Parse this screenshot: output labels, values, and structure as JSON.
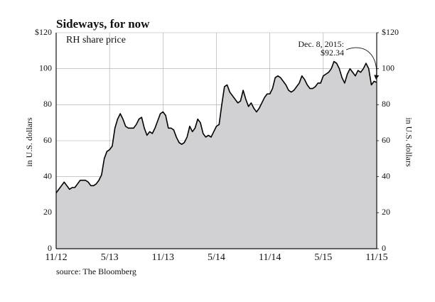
{
  "chart_data": {
    "type": "area",
    "title": "Sideways, for now",
    "subtitle": "RH share price",
    "ylabel": "in U.S. dollars",
    "y2label": "in U.S. dollars",
    "source": "source: The Bloomberg",
    "annotation": {
      "label": "Dec. 8, 2015:",
      "value": 92.34,
      "value_label": "$92.34"
    },
    "color": "#d1d1d3",
    "line_color": "#000000",
    "grid": true,
    "xlim": [
      2012.833,
      2015.833
    ],
    "xticks": [
      {
        "value": 2012.833,
        "label": "11/12"
      },
      {
        "value": 2013.333,
        "label": "5/13"
      },
      {
        "value": 2013.833,
        "label": "11/13"
      },
      {
        "value": 2014.333,
        "label": "5/14"
      },
      {
        "value": 2014.833,
        "label": "11/14"
      },
      {
        "value": 2015.333,
        "label": "5/15"
      },
      {
        "value": 2015.833,
        "label": "11/15"
      }
    ],
    "ylim": [
      0,
      120
    ],
    "yticks": [
      {
        "value": 120,
        "label": "$120"
      },
      100,
      80,
      60,
      40,
      20,
      0
    ],
    "y2lim": [
      0,
      120
    ],
    "y2ticks": [
      {
        "value": 120,
        "label": "$120"
      },
      100,
      80,
      60,
      40,
      20,
      0
    ],
    "x": [
      2012.833,
      2012.858,
      2012.883,
      2012.908,
      2012.933,
      2012.958,
      2012.983,
      2013.008,
      2013.033,
      2013.058,
      2013.083,
      2013.108,
      2013.133,
      2013.158,
      2013.183,
      2013.208,
      2013.233,
      2013.258,
      2013.283,
      2013.308,
      2013.333,
      2013.358,
      2013.383,
      2013.408,
      2013.433,
      2013.458,
      2013.483,
      2013.508,
      2013.533,
      2013.558,
      2013.583,
      2013.608,
      2013.633,
      2013.658,
      2013.683,
      2013.708,
      2013.733,
      2013.758,
      2013.783,
      2013.808,
      2013.833,
      2013.858,
      2013.883,
      2013.908,
      2013.933,
      2013.958,
      2013.983,
      2014.008,
      2014.033,
      2014.058,
      2014.083,
      2014.108,
      2014.133,
      2014.158,
      2014.183,
      2014.208,
      2014.233,
      2014.258,
      2014.283,
      2014.308,
      2014.333,
      2014.358,
      2014.383,
      2014.408,
      2014.433,
      2014.458,
      2014.483,
      2014.508,
      2014.533,
      2014.558,
      2014.583,
      2014.608,
      2014.633,
      2014.658,
      2014.683,
      2014.708,
      2014.733,
      2014.758,
      2014.783,
      2014.808,
      2014.833,
      2014.858,
      2014.883,
      2014.908,
      2014.933,
      2014.958,
      2014.983,
      2015.008,
      2015.033,
      2015.058,
      2015.083,
      2015.108,
      2015.133,
      2015.158,
      2015.183,
      2015.208,
      2015.233,
      2015.258,
      2015.283,
      2015.308,
      2015.333,
      2015.358,
      2015.383,
      2015.408,
      2015.433,
      2015.458,
      2015.483,
      2015.508,
      2015.533,
      2015.558,
      2015.583,
      2015.608,
      2015.633,
      2015.658,
      2015.683,
      2015.708,
      2015.733,
      2015.758,
      2015.783,
      2015.808,
      2015.833
    ],
    "values": [
      31,
      33,
      35,
      37,
      35,
      33,
      34,
      34,
      36,
      38,
      38,
      38,
      37,
      35,
      35,
      36,
      38,
      41,
      50,
      54,
      55,
      57,
      67,
      72,
      75,
      72,
      68,
      67,
      67,
      67,
      69,
      72,
      73,
      67,
      63,
      65,
      64,
      67,
      71,
      75,
      76,
      74,
      67,
      67,
      66,
      62,
      59,
      58,
      59,
      62,
      68,
      65,
      67,
      72,
      70,
      64,
      62,
      63,
      62,
      65,
      68,
      69,
      80,
      90,
      91,
      87,
      85,
      83,
      81,
      82,
      88,
      83,
      79,
      81,
      78,
      76,
      78,
      81,
      84,
      86,
      86,
      89,
      95,
      96,
      95,
      93,
      91,
      88,
      87,
      88,
      90,
      92,
      96,
      94,
      91,
      89,
      89,
      90,
      92,
      92,
      96,
      97,
      98,
      100,
      104,
      103,
      100,
      95,
      92,
      97,
      100,
      98,
      96,
      99,
      98,
      100,
      103,
      100,
      91,
      93,
      92.34
    ]
  }
}
